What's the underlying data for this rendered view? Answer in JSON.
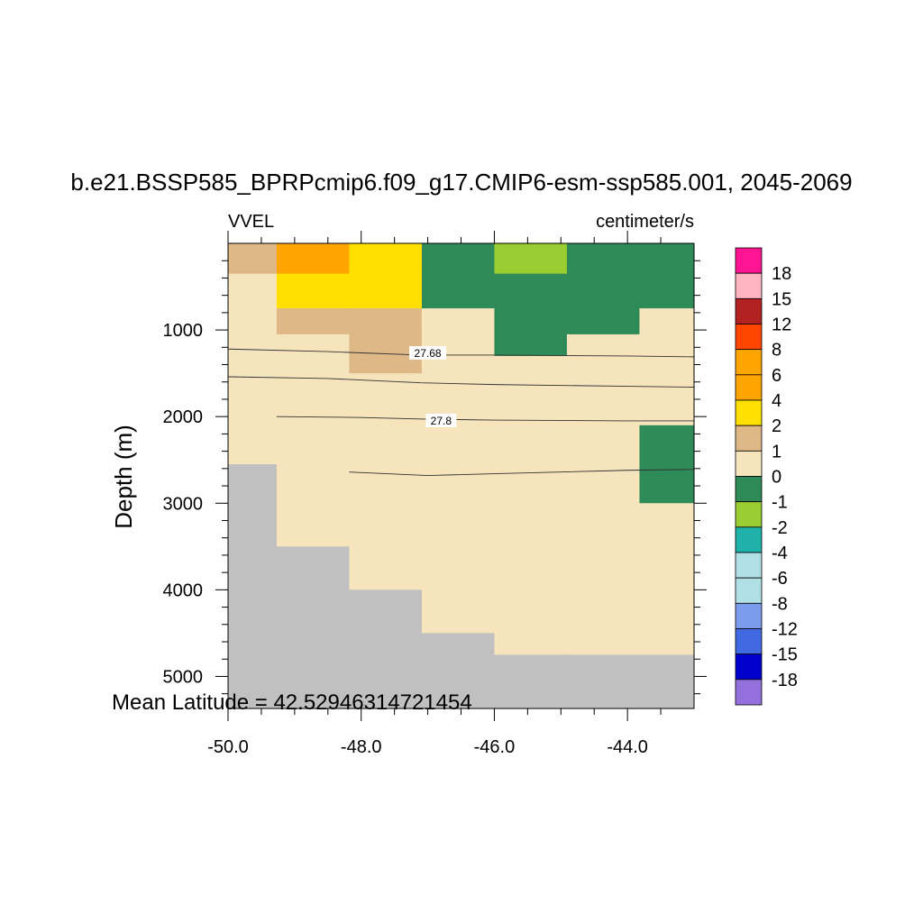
{
  "chart_data": {
    "type": "heatmap",
    "title": "b.e21.BSSP585_BPRPcmip6.f09_g17.CMIP6-esm-ssp585.001, 2045-2069",
    "left_label": "VVEL",
    "right_label": "centimeter/s",
    "ylabel": "Depth (m)",
    "xlabel": "",
    "annotation": "Mean Latitude = 42.52946314721454",
    "xlim": [
      -50.0,
      -43.0
    ],
    "ylim_depth": [
      0,
      5370
    ],
    "y_reversed": true,
    "x_tick_labels": [
      "-50.0",
      "-48.0",
      "-46.0",
      "-44.0"
    ],
    "x_ticks": [
      -50,
      -48,
      -46,
      -44
    ],
    "y_tick_labels": [
      "1000",
      "2000",
      "3000",
      "4000",
      "5000"
    ],
    "y_ticks": [
      1000,
      2000,
      3000,
      4000,
      5000
    ],
    "x_cell_edges": [
      -50.0,
      -49.27,
      -48.18,
      -47.09,
      -46.0,
      -44.91,
      -43.82,
      -43.0
    ],
    "depth_cell_edges": [
      0,
      350,
      750,
      1050,
      1300,
      1500,
      2100,
      2550,
      3000,
      3500,
      4000,
      4500,
      4750,
      5370
    ],
    "cell_classes": [
      [
        "1-2",
        "4-6",
        "2-4",
        "-1-0",
        "-2--1",
        "-1-0",
        "-1-0"
      ],
      [
        "0-1",
        "2-4",
        "2-4",
        "-1-0",
        "-1-0",
        "-1-0",
        "-1-0"
      ],
      [
        "0-1",
        "1-2",
        "1-2",
        "0-1",
        "-1-0",
        "-1-0",
        "0-1"
      ],
      [
        "0-1",
        "0-1",
        "1-2",
        "0-1",
        "-1-0",
        "0-1",
        "0-1"
      ],
      [
        "0-1",
        "0-1",
        "1-2",
        "0-1",
        "0-1",
        "0-1",
        "0-1"
      ],
      [
        "0-1",
        "0-1",
        "0-1",
        "0-1",
        "0-1",
        "0-1",
        "0-1"
      ],
      [
        "0-1",
        "0-1",
        "0-1",
        "0-1",
        "0-1",
        "0-1",
        "-1-0"
      ],
      [
        "land",
        "0-1",
        "0-1",
        "0-1",
        "0-1",
        "0-1",
        "-1-0"
      ],
      [
        "land",
        "0-1",
        "0-1",
        "0-1",
        "0-1",
        "0-1",
        "0-1"
      ],
      [
        "land",
        "land",
        "0-1",
        "0-1",
        "0-1",
        "0-1",
        "0-1"
      ],
      [
        "land",
        "land",
        "land",
        "0-1",
        "0-1",
        "0-1",
        "0-1"
      ],
      [
        "land",
        "land",
        "land",
        "land",
        "0-1",
        "0-1",
        "0-1"
      ],
      [
        "land",
        "land",
        "land",
        "land",
        "land",
        "land",
        "land"
      ]
    ],
    "class_colors": {
      "-2--1": "#9acd32",
      "-1-0": "#2e8b57",
      "0-1": "#f5e4bc",
      "1-2": "#deb887",
      "2-4": "#ffe000",
      "4-6": "#ffa500",
      "land": "#c0c0c0"
    },
    "contours": [
      {
        "label": "27.68",
        "label_x": -47.0,
        "label_depth": 1270,
        "points": [
          [
            -50.0,
            1220
          ],
          [
            -48.5,
            1250
          ],
          [
            -47.1,
            1290
          ],
          [
            -46.0,
            1290
          ],
          [
            -44.0,
            1300
          ],
          [
            -43.0,
            1310
          ]
        ]
      },
      {
        "label": "",
        "points": [
          [
            -50.0,
            1540
          ],
          [
            -48.5,
            1560
          ],
          [
            -47.1,
            1610
          ],
          [
            -46.0,
            1630
          ],
          [
            -44.0,
            1650
          ],
          [
            -43.0,
            1660
          ]
        ]
      },
      {
        "label": "27.8",
        "label_x": -46.8,
        "label_depth": 2050,
        "points": [
          [
            -49.27,
            2000
          ],
          [
            -48.0,
            2010
          ],
          [
            -47.0,
            2030
          ],
          [
            -46.0,
            2040
          ],
          [
            -44.0,
            2050
          ],
          [
            -43.0,
            2050
          ]
        ]
      },
      {
        "label": "",
        "points": [
          [
            -48.18,
            2640
          ],
          [
            -47.0,
            2680
          ],
          [
            -46.0,
            2660
          ],
          [
            -44.0,
            2620
          ],
          [
            -43.0,
            2610
          ]
        ]
      }
    ],
    "legend": {
      "position": "right",
      "labels": [
        "18",
        "15",
        "12",
        "8",
        "6",
        "4",
        "2",
        "1",
        "0",
        "-1",
        "-2",
        "-4",
        "-6",
        "-8",
        "-12",
        "-15",
        "-18"
      ],
      "colors": [
        "#ff1493",
        "#ffb6c1",
        "#b22222",
        "#ff4500",
        "#ffa500",
        "#ffa500",
        "#ffe000",
        "#deb887",
        "#f5e4bc",
        "#2e8b57",
        "#9acd32",
        "#20b2aa",
        "#b0e0e6",
        "#b0e0e6",
        "#7b9ced",
        "#4169e1",
        "#0000cd",
        "#9370db"
      ]
    }
  }
}
